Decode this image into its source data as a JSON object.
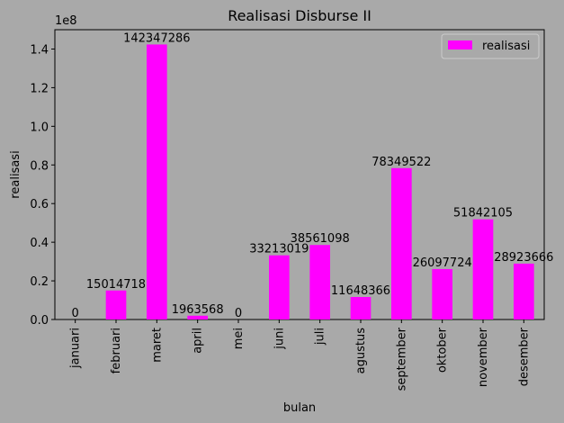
{
  "chart_data": {
    "type": "bar",
    "title": "Realisasi Disburse II",
    "xlabel": "bulan",
    "ylabel": "realisasi",
    "offset_text": "1e8",
    "scale": 100000000,
    "ylim": [
      0,
      150000000
    ],
    "yticks": [
      0,
      20000000,
      40000000,
      60000000,
      80000000,
      100000000,
      120000000,
      140000000
    ],
    "ytick_labels": [
      "0.0",
      "0.2",
      "0.4",
      "0.6",
      "0.8",
      "1.0",
      "1.2",
      "1.4"
    ],
    "categories": [
      "januari",
      "februari",
      "maret",
      "april",
      "mei",
      "juni",
      "juli",
      "agustus",
      "september",
      "oktober",
      "november",
      "desember"
    ],
    "series": [
      {
        "name": "realisasi",
        "color": "#ff00ff",
        "values": [
          0,
          15014718,
          142347286,
          1963568,
          0,
          33213019,
          38561098,
          11648366,
          78349522,
          26097724,
          51842105,
          28923666
        ]
      }
    ],
    "legend": "top-right",
    "grid": false
  }
}
